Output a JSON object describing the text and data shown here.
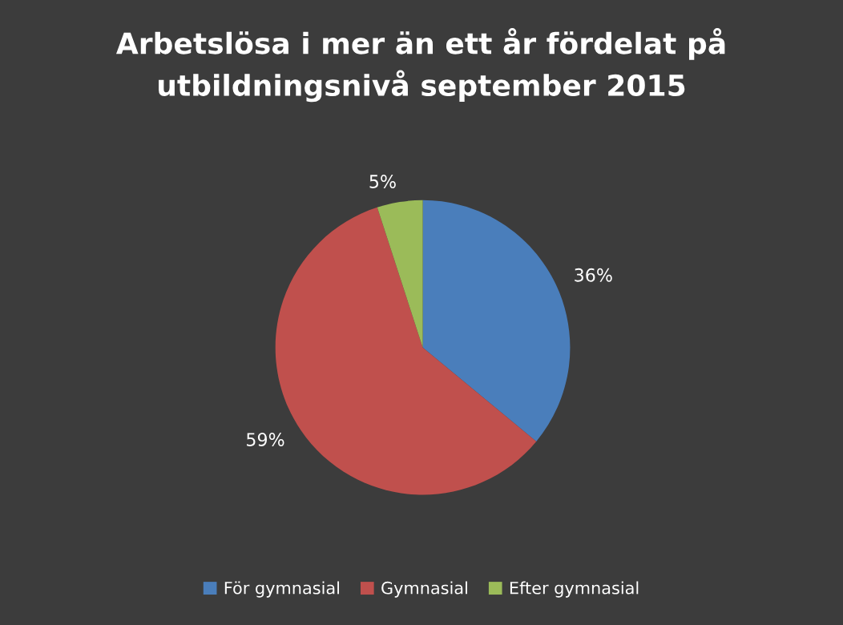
{
  "chart_data": {
    "type": "pie",
    "title": "Arbetslösa i mer än ett år fördelat på utbildningsnivå september 2015",
    "categories": [
      "För gymnasial",
      "Gymnasial",
      "Efter gymnasial"
    ],
    "values": [
      36,
      59,
      5
    ],
    "colors": [
      "#4a7ebb",
      "#c0504d",
      "#9bbb59"
    ],
    "value_labels": [
      "36%",
      "59%",
      "5%"
    ],
    "legend": "bottom"
  }
}
